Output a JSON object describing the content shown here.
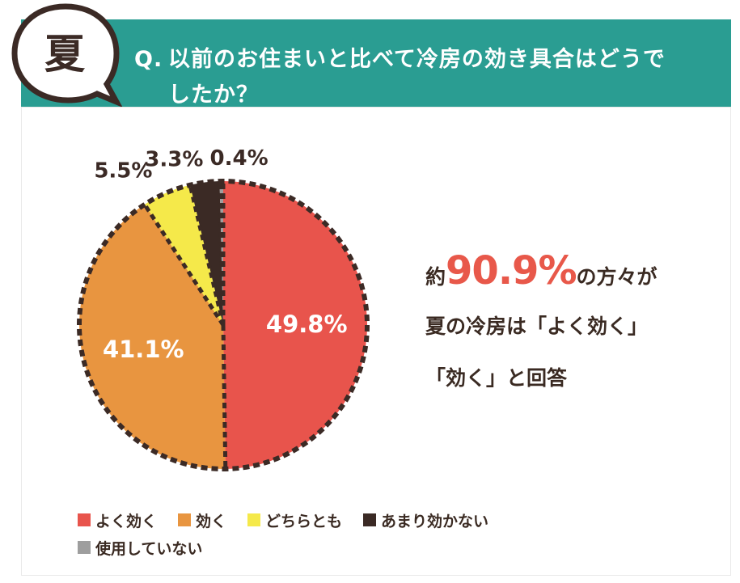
{
  "header": {
    "badge_char": "夏",
    "question_prefix": "Q.",
    "question_line1": "以前のお住まいと比べて冷房の効き具合はどうで",
    "question_line2": "したか？"
  },
  "callout": {
    "line1_pre": "約",
    "line1_value": "90.9%",
    "line1_post": "の方々が",
    "line2": "夏の冷房は「よく効く」",
    "line3": "「効く」と回答"
  },
  "colors": {
    "header": "#2a9d92",
    "text": "#3a2a22",
    "accent": "#e8584a"
  },
  "chart_data": {
    "type": "pie",
    "unit": "%",
    "slices": [
      {
        "label": "よく効く",
        "value": 49.8,
        "display": "49.8%",
        "color": "#e8544c",
        "label_position": "inside"
      },
      {
        "label": "効く",
        "value": 41.1,
        "display": "41.1%",
        "color": "#e89540",
        "label_position": "inside"
      },
      {
        "label": "どちらとも",
        "value": 5.5,
        "display": "5.5%",
        "color": "#f5e94a",
        "label_position": "outside"
      },
      {
        "label": "あまり効かない",
        "value": 3.3,
        "display": "3.3%",
        "color": "#3b2a25",
        "label_position": "outside"
      },
      {
        "label": "使用していない",
        "value": 0.4,
        "display": "0.4%",
        "color": "#9e9e9e",
        "label_position": "outside"
      }
    ],
    "start": "top",
    "direction": "clockwise",
    "legend_position": "bottom"
  }
}
